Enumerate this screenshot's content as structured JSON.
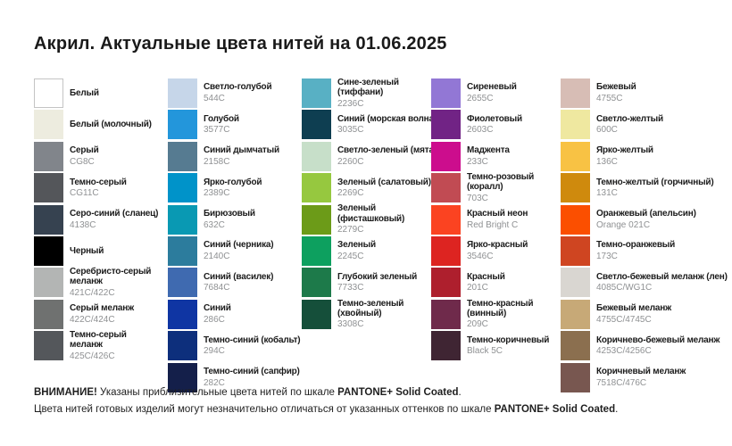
{
  "title": "Акрил. Актуальные цвета нитей на 01.06.2025",
  "columns": [
    {
      "items": [
        {
          "name": "Белый",
          "code": "",
          "color": "#ffffff",
          "border": true
        },
        {
          "name": "Белый (молочный)",
          "code": "",
          "color": "#edecdf"
        },
        {
          "name": "Серый",
          "code": "CG8C",
          "color": "#81858b"
        },
        {
          "name": "Темно-серый",
          "code": "CG11C",
          "color": "#54565a"
        },
        {
          "name": "Серо-синий (сланец)",
          "code": "4138C",
          "color": "#364250"
        },
        {
          "name": "Черный",
          "code": "",
          "color": "#000000"
        },
        {
          "name": "Серебристо-серый меланж",
          "code": "421C/422C",
          "color": "#b3b5b4"
        },
        {
          "name": "Серый меланж",
          "code": "422C/424C",
          "color": "#6f7170"
        },
        {
          "name": "Темно-серый меланж",
          "code": "425C/426C",
          "color": "#54575b"
        }
      ]
    },
    {
      "items": [
        {
          "name": "Светло-голубой",
          "code": "544C",
          "color": "#c6d6e9"
        },
        {
          "name": "Голубой",
          "code": "3577C",
          "color": "#2396db"
        },
        {
          "name": "Синий дымчатый",
          "code": "2158C",
          "color": "#567b91"
        },
        {
          "name": "Ярко-голубой",
          "code": "2389C",
          "color": "#0093c9"
        },
        {
          "name": "Бирюзовый",
          "code": "632C",
          "color": "#0999b3"
        },
        {
          "name": "Синий (черника)",
          "code": "2140C",
          "color": "#2c7c9d"
        },
        {
          "name": "Синий (василек)",
          "code": "7684C",
          "color": "#3f6ab0"
        },
        {
          "name": "Синий",
          "code": "286C",
          "color": "#0f35a3"
        },
        {
          "name": "Темно-синий (кобальт)",
          "code": "294C",
          "color": "#0d2f7c"
        },
        {
          "name": "Темно-синий (сапфир)",
          "code": "282C",
          "color": "#141f4a"
        }
      ]
    },
    {
      "items": [
        {
          "name": "Сине-зеленый (тиффани)",
          "code": "2236C",
          "color": "#58b0c4"
        },
        {
          "name": "Синий (морская волна)",
          "code": "3035C",
          "color": "#0e3e51"
        },
        {
          "name": "Светло-зеленый (мята)",
          "code": "2260C",
          "color": "#c7dfc9"
        },
        {
          "name": "Зеленый (салатовый)",
          "code": "2269C",
          "color": "#96c83f"
        },
        {
          "name": "Зеленый (фисташковый)",
          "code": "2279C",
          "color": "#6c9b18"
        },
        {
          "name": "Зеленый",
          "code": "2245C",
          "color": "#0da05f"
        },
        {
          "name": "Глубокий зеленый",
          "code": "7733C",
          "color": "#1d7a4a"
        },
        {
          "name": "Темно-зеленый (хвойный)",
          "code": "3308C",
          "color": "#154f3a"
        }
      ]
    },
    {
      "items": [
        {
          "name": "Сиреневый",
          "code": "2655C",
          "color": "#9277d5"
        },
        {
          "name": "Фиолетовый",
          "code": "2603C",
          "color": "#712385"
        },
        {
          "name": "Маджента",
          "code": "233C",
          "color": "#cc0d8d"
        },
        {
          "name": "Темно-розовый (коралл)",
          "code": "703C",
          "color": "#c14b53"
        },
        {
          "name": "Красный неон",
          "code": "Red Bright C",
          "color": "#fb4321"
        },
        {
          "name": "Ярко-красный",
          "code": "3546C",
          "color": "#dd2421"
        },
        {
          "name": "Красный",
          "code": "201C",
          "color": "#ae1f2d"
        },
        {
          "name": "Темно-красный (винный)",
          "code": "209C",
          "color": "#6f2a4b"
        },
        {
          "name": "Темно-коричневый",
          "code": "Black 5C",
          "color": "#3f2533"
        }
      ]
    },
    {
      "items": [
        {
          "name": "Бежевый",
          "code": "4755C",
          "color": "#d7bdb5"
        },
        {
          "name": "Светло-желтый",
          "code": "600C",
          "color": "#efe8a0"
        },
        {
          "name": "Ярко-желтый",
          "code": "136C",
          "color": "#f8c244"
        },
        {
          "name": "Темно-желтый (горчичный)",
          "code": "131C",
          "color": "#cf8a0d"
        },
        {
          "name": "Оранжевый (апельсин)",
          "code": "Orange 021C",
          "color": "#fb4f00"
        },
        {
          "name": "Темно-оранжевый",
          "code": "173C",
          "color": "#cf4521"
        },
        {
          "name": "Светло-бежевый меланж (лен)",
          "code": "4085C/WG1C",
          "color": "#d9d6d1"
        },
        {
          "name": "Бежевый меланж",
          "code": "4755C/4745C",
          "color": "#c7a977"
        },
        {
          "name": "Коричнево-бежевый меланж",
          "code": "4253C/4256C",
          "color": "#8b6f4f"
        },
        {
          "name": "Коричневый меланж",
          "code": "7518C/476C",
          "color": "#785750"
        }
      ]
    }
  ],
  "footer": {
    "line1": [
      {
        "text": "ВНИМАНИЕ!",
        "bold": true
      },
      {
        "text": " Указаны приблизительные цвета нитей по шкале ",
        "bold": false
      },
      {
        "text": "PANTONE+ Solid Coated",
        "bold": true
      },
      {
        "text": ".",
        "bold": false
      }
    ],
    "line2": [
      {
        "text": "Цвета нитей готовых изделий могут незначительно отличаться от указанных оттенков по шкале ",
        "bold": false
      },
      {
        "text": "PANTONE+ Solid Coated",
        "bold": true
      },
      {
        "text": ".",
        "bold": false
      }
    ]
  }
}
